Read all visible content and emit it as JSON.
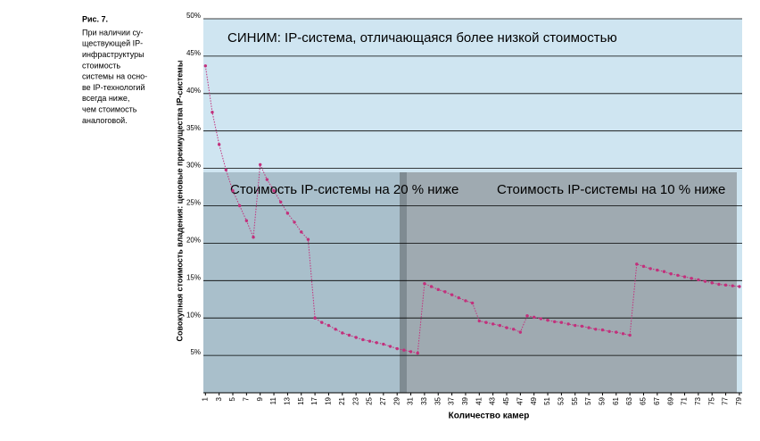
{
  "chart_data": {
    "type": "line",
    "caption_label": "Рис. 7.",
    "caption_lines": [
      "При наличии су-",
      "ществующей IP-",
      "инфраструктуры",
      "стоимость",
      "системы на осно-",
      "ве IP-технологий",
      "всегда ниже,",
      "чем стоимость",
      "аналоговой."
    ],
    "y_label": "Совокупная стоимость владения: ценовые преимущества IP-системы",
    "x_label": "Количество камер",
    "annotations": [
      "СИНИМ: IP-система, отличающаяся более низкой стоимостью",
      "Стоимость IP-системы на 20 % ниже",
      "Стоимость IP-системы на 10 % ниже"
    ],
    "color": "#c2307c",
    "x": [
      1,
      2,
      3,
      4,
      5,
      6,
      7,
      8,
      9,
      10,
      11,
      12,
      13,
      14,
      15,
      16,
      17,
      18,
      19,
      20,
      21,
      22,
      23,
      24,
      25,
      26,
      27,
      28,
      29,
      30,
      31,
      32,
      33,
      34,
      35,
      36,
      37,
      38,
      39,
      40,
      41,
      42,
      43,
      44,
      45,
      46,
      47,
      48,
      49,
      50,
      51,
      52,
      53,
      54,
      55,
      56,
      57,
      58,
      59,
      60,
      61,
      62,
      63,
      64,
      65,
      66,
      67,
      68,
      69,
      70,
      71,
      72,
      73,
      74,
      75,
      76,
      77,
      78,
      79
    ],
    "values": [
      43.7,
      37.5,
      33.2,
      29.8,
      27,
      25,
      23,
      20.8,
      30.5,
      28.5,
      27,
      25.5,
      24,
      22.8,
      21.5,
      20.5,
      10,
      9.4,
      9,
      8.5,
      8,
      7.7,
      7.4,
      7.1,
      6.9,
      6.7,
      6.5,
      6.2,
      5.9,
      5.7,
      5.5,
      5.3,
      14.6,
      14.2,
      13.8,
      13.5,
      13.1,
      12.7,
      12.3,
      12,
      9.6,
      9.4,
      9.2,
      9,
      8.7,
      8.5,
      8.1,
      10.3,
      10.1,
      9.9,
      9.7,
      9.5,
      9.4,
      9.2,
      9,
      8.9,
      8.7,
      8.5,
      8.4,
      8.2,
      8.1,
      7.9,
      7.7,
      17.2,
      16.9,
      16.6,
      16.4,
      16.2,
      15.9,
      15.7,
      15.5,
      15.3,
      15.1,
      14.9,
      14.7,
      14.5,
      14.4,
      14.3,
      14.2
    ],
    "xlim": [
      0.7,
      79.4
    ],
    "xticks": [
      1,
      3,
      5,
      7,
      9,
      11,
      13,
      15,
      17,
      19,
      21,
      23,
      25,
      27,
      29,
      31,
      33,
      35,
      37,
      39,
      41,
      43,
      45,
      47,
      49,
      51,
      53,
      55,
      57,
      59,
      61,
      63,
      65,
      67,
      69,
      71,
      73,
      75,
      77,
      79
    ],
    "ylim": [
      0,
      50
    ],
    "yticks": [
      {
        "value": 5,
        "label": "5%"
      },
      {
        "value": 10,
        "label": "10%"
      },
      {
        "value": 15,
        "label": "15%"
      },
      {
        "value": 20,
        "label": "20%"
      },
      {
        "value": 25,
        "label": "25%"
      },
      {
        "value": 30,
        "label": "30%"
      },
      {
        "value": 35,
        "label": "35%"
      },
      {
        "value": 40,
        "label": "40%"
      },
      {
        "value": 45,
        "label": "45%"
      },
      {
        "value": 50,
        "label": "50%"
      }
    ],
    "grid": true
  }
}
